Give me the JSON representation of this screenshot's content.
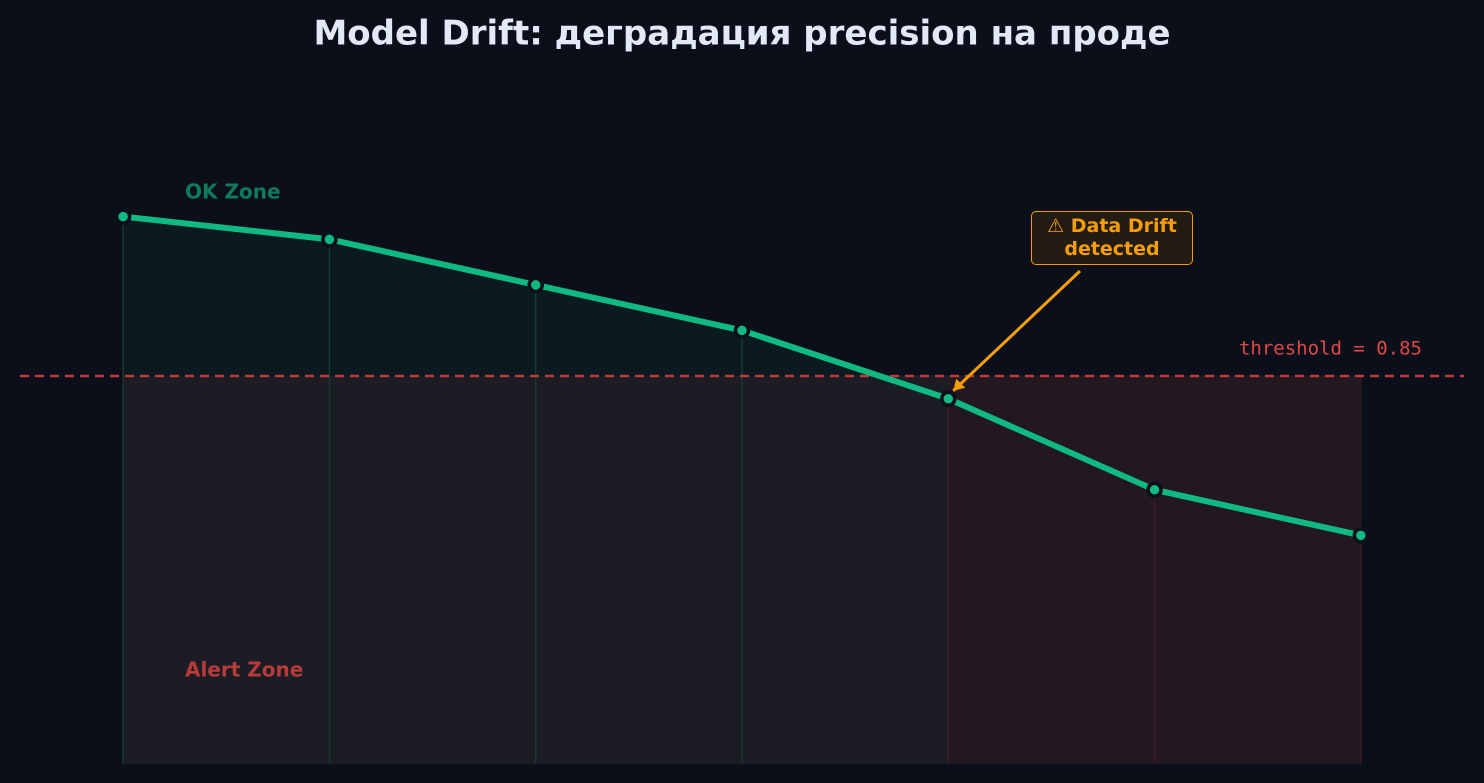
{
  "chart_data": {
    "type": "line",
    "title": "Model Drift: деградация precision на проде",
    "categories": [
      null,
      null,
      null,
      null,
      null,
      null,
      null
    ],
    "values": [
      0.92,
      0.91,
      0.89,
      0.87,
      0.84,
      0.8,
      0.78
    ],
    "color": "#10b981",
    "ylim": [
      0.68,
      0.98
    ],
    "threshold": {
      "value": 0.85,
      "label": "threshold = 0.85"
    },
    "threshold_color": "#c0393b",
    "ok_zone_label": "OK Zone",
    "alert_zone_label": "Alert Zone",
    "annotation": "⚠ Data Drift\ndetected"
  }
}
